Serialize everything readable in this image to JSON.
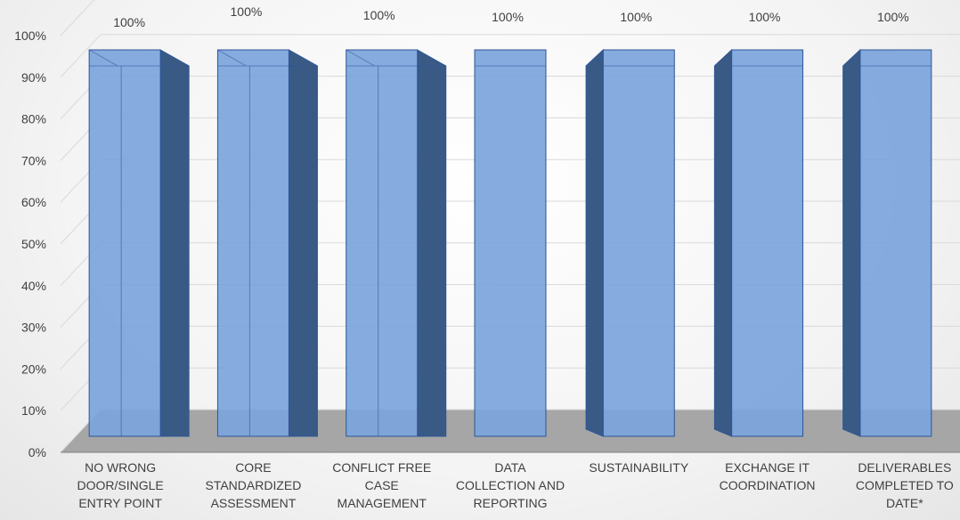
{
  "chart_data": {
    "type": "bar",
    "title": "",
    "xlabel": "",
    "ylabel": "",
    "ylim": [
      0,
      1
    ],
    "yticks": [
      "0%",
      "10%",
      "20%",
      "30%",
      "40%",
      "50%",
      "60%",
      "70%",
      "80%",
      "90%",
      "100%"
    ],
    "categories": [
      [
        "NO WRONG",
        "DOOR/SINGLE",
        "ENTRY POINT"
      ],
      [
        "CORE",
        "STANDARDIZED",
        "ASSESSMENT"
      ],
      [
        "CONFLICT FREE",
        "CASE",
        "MANAGEMENT"
      ],
      [
        "DATA",
        "COLLECTION AND",
        "REPORTING"
      ],
      [
        "SUSTAINABILITY"
      ],
      [
        "EXCHANGE IT",
        "COORDINATION"
      ],
      [
        "DELIVERABLES",
        "COMPLETED TO",
        "DATE*"
      ]
    ],
    "values": [
      1,
      1,
      1,
      1,
      1,
      1,
      1
    ],
    "data_labels": [
      "100%",
      "100%",
      "100%",
      "100%",
      "100%",
      "100%",
      "100%"
    ],
    "grid": true,
    "legend": "none",
    "style": "3d-column",
    "colors": {
      "bar_front": "#7ba4dc",
      "bar_top": "#8fb6ea",
      "bar_side": "#3a5a86",
      "bar_edge": "#2e5597",
      "floor": "#a6a6a6",
      "gridline": "#d9d9d9",
      "text": "#404040"
    }
  }
}
